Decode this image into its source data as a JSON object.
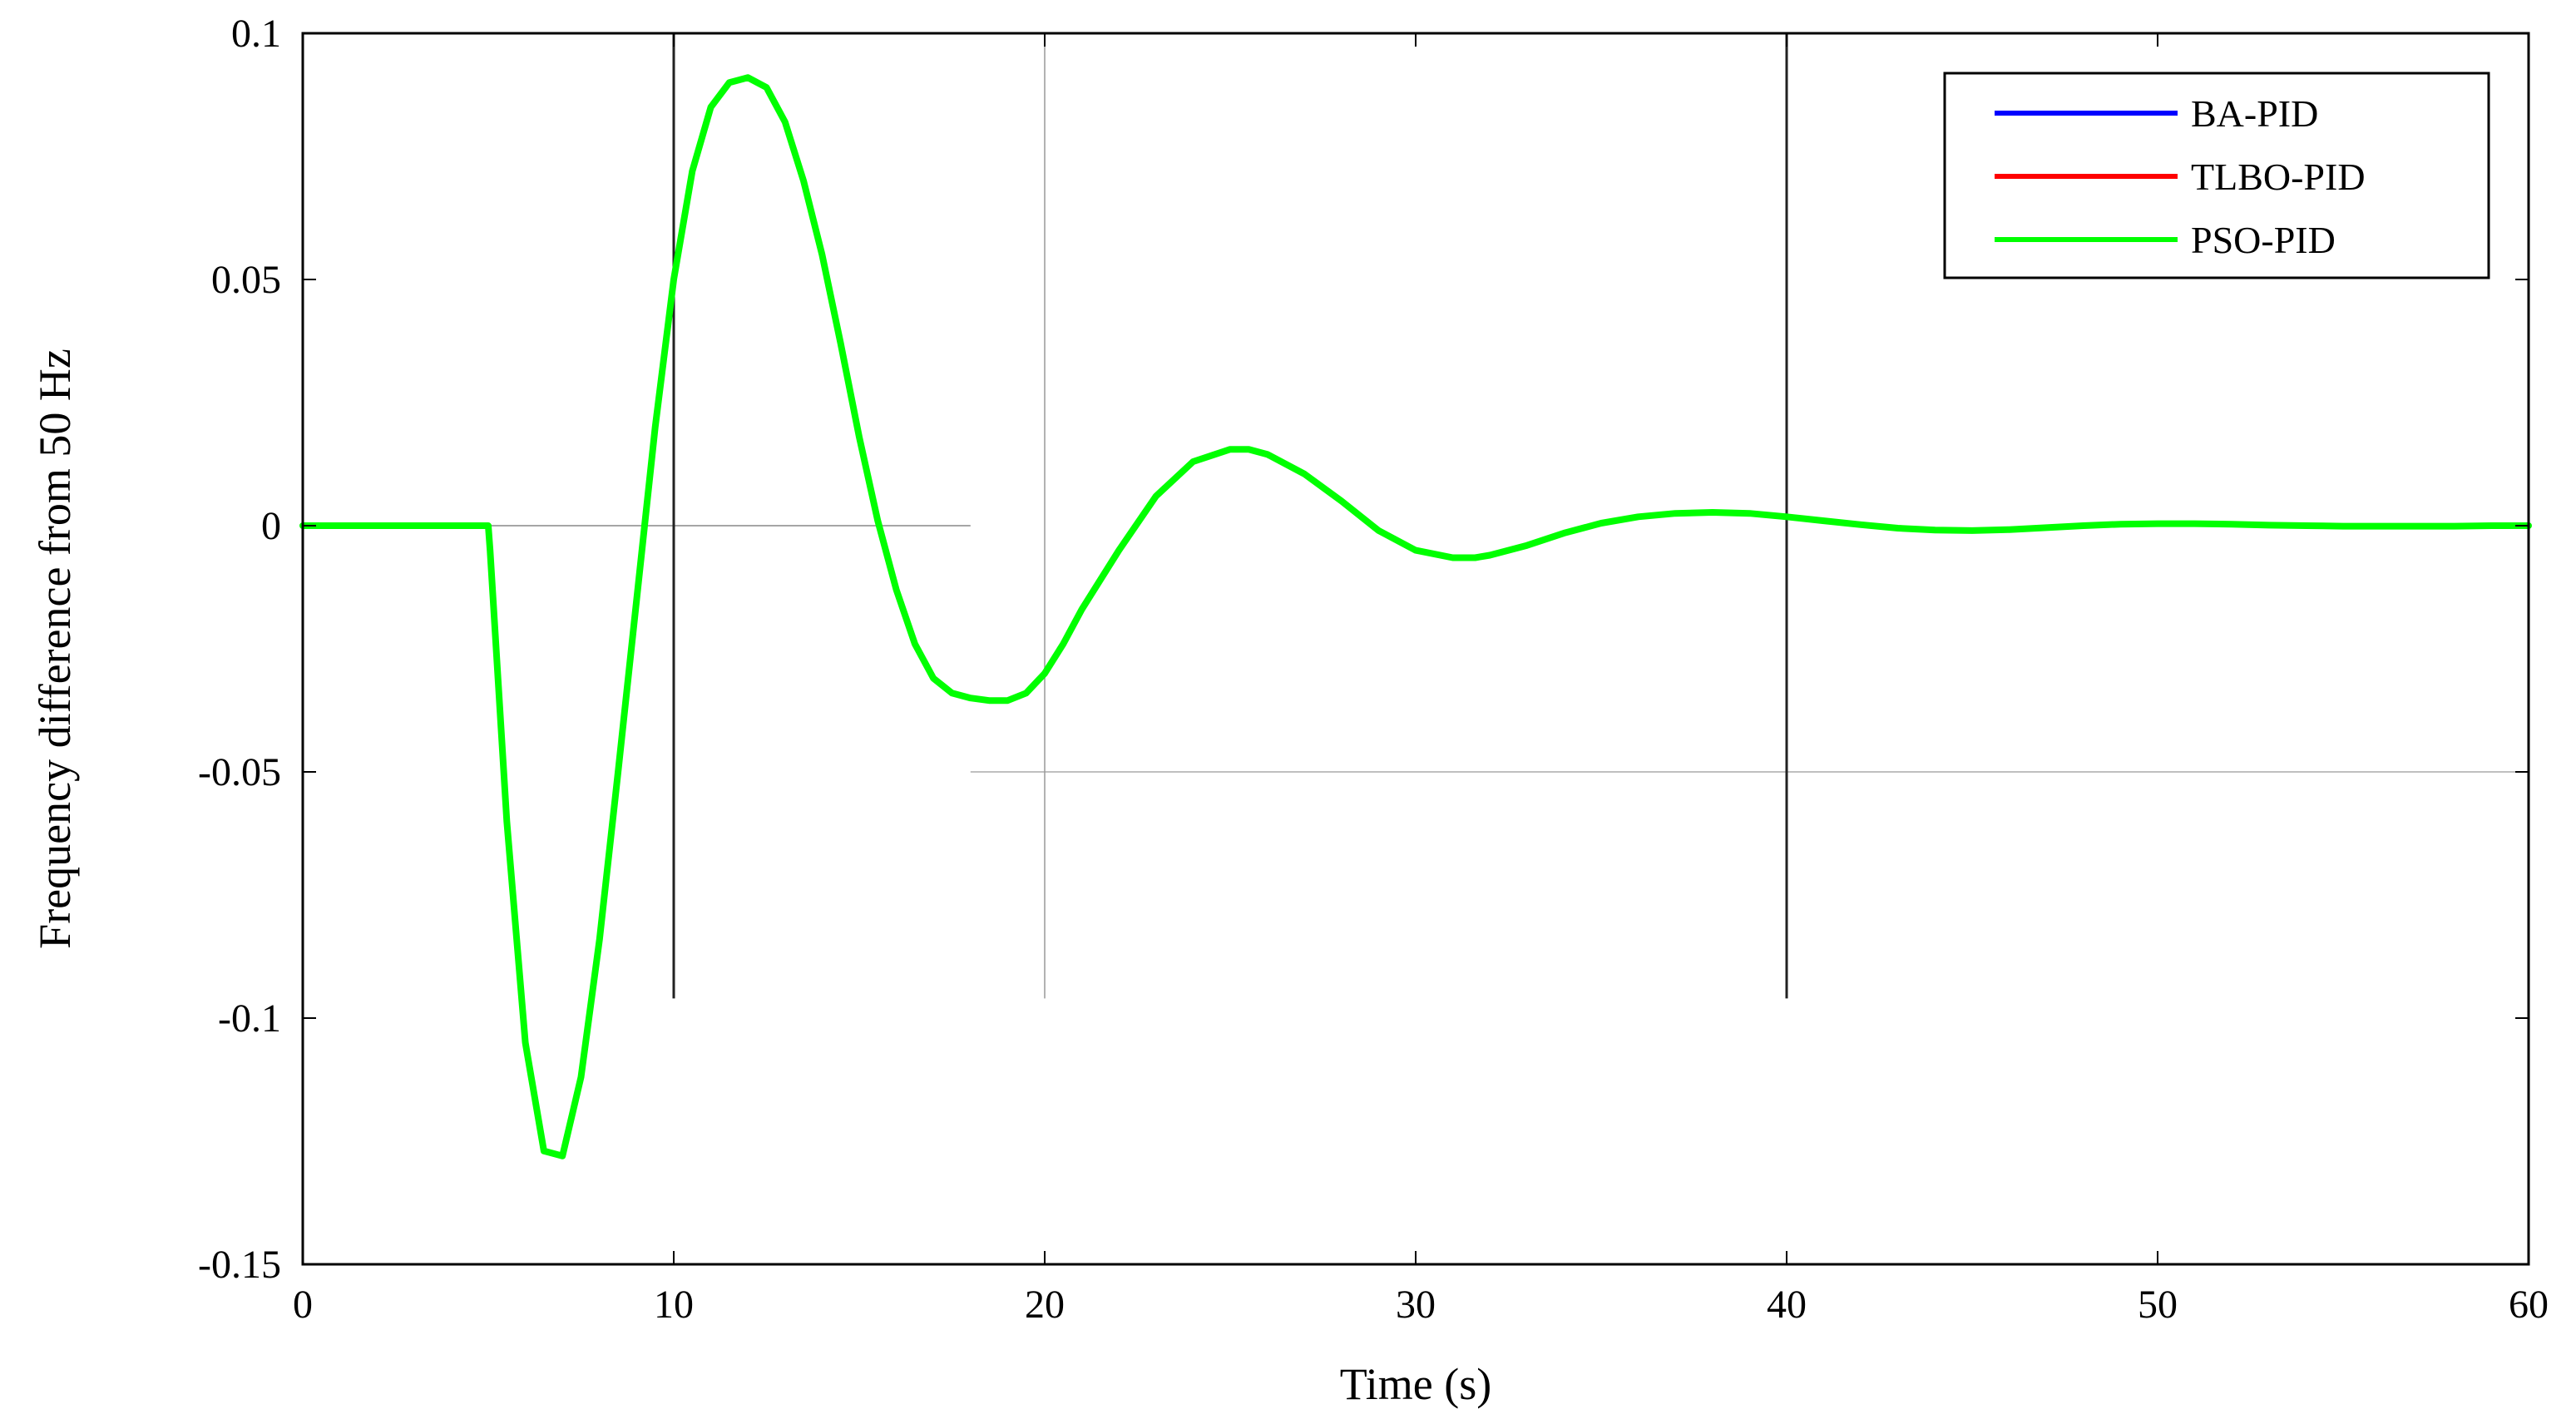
{
  "chart_data": {
    "type": "line",
    "title": "",
    "xlabel": "Time (s)",
    "ylabel": "Frequency difference from 50 Hz",
    "xlim": [
      0,
      60
    ],
    "ylim": [
      -0.15,
      0.1
    ],
    "x_ticks": [
      0,
      10,
      20,
      30,
      40,
      50,
      60
    ],
    "x_tick_labels": [
      "0",
      "10",
      "20",
      "30",
      "40",
      "50",
      "60"
    ],
    "y_ticks": [
      -0.15,
      -0.1,
      -0.05,
      0,
      0.05,
      0.1
    ],
    "y_tick_labels": [
      "-0.15",
      "-0.1",
      "-0.05",
      "0",
      "0.05",
      "0.1"
    ],
    "grid": false,
    "legend_position": "top-right",
    "series": [
      {
        "name": "BA-PID",
        "color": "#0000ff",
        "x": [
          0,
          5,
          5.05,
          5.5,
          6,
          6.5,
          7,
          7.5,
          8,
          8.5,
          9,
          9.5,
          10,
          10.5,
          11,
          11.5,
          12,
          12.5,
          13,
          13.5,
          14,
          14.5,
          15,
          15.5,
          16,
          16.5,
          17,
          17.5,
          18,
          18.5,
          19,
          19.5,
          20,
          20.5,
          21,
          22,
          23,
          24,
          25,
          25.5,
          26,
          27,
          28,
          29,
          30,
          31,
          31.6,
          32,
          33,
          34,
          35,
          36,
          37,
          38,
          39,
          40,
          41,
          42,
          43,
          44,
          45,
          46,
          47,
          48,
          49,
          50,
          51,
          52,
          53,
          54,
          55,
          56,
          57,
          58,
          59,
          60
        ],
        "y": [
          0,
          0,
          -0.005,
          -0.06,
          -0.105,
          -0.127,
          -0.128,
          -0.112,
          -0.084,
          -0.05,
          -0.015,
          0.02,
          0.05,
          0.072,
          0.085,
          0.09,
          0.091,
          0.089,
          0.082,
          0.07,
          0.055,
          0.037,
          0.018,
          0.001,
          -0.013,
          -0.024,
          -0.031,
          -0.034,
          -0.035,
          -0.0355,
          -0.0355,
          -0.034,
          -0.03,
          -0.024,
          -0.017,
          -0.005,
          0.006,
          0.013,
          0.0155,
          0.0155,
          0.0145,
          0.0105,
          0.005,
          -0.001,
          -0.005,
          -0.0065,
          -0.0065,
          -0.006,
          -0.004,
          -0.0015,
          0.0005,
          0.0018,
          0.0025,
          0.0027,
          0.0025,
          0.0018,
          0.001,
          0.0002,
          -0.0005,
          -0.0009,
          -0.001,
          -0.0008,
          -0.0004,
          0,
          0.0003,
          0.0004,
          0.0004,
          0.0003,
          0.0001,
          0,
          -0.0001,
          -0.0001,
          -0.0001,
          -0.0001,
          0,
          0
        ]
      },
      {
        "name": "TLBO-PID",
        "color": "#ff0000",
        "x": [
          0,
          5,
          5.05,
          5.5,
          6,
          6.5,
          7,
          7.5,
          8,
          8.5,
          9,
          9.5,
          10,
          10.5,
          11,
          11.5,
          12,
          12.5,
          13,
          13.5,
          14,
          14.5,
          15,
          15.5,
          16,
          16.5,
          17,
          17.5,
          18,
          18.5,
          19,
          19.5,
          20,
          20.5,
          21,
          22,
          23,
          24,
          25,
          25.5,
          26,
          27,
          28,
          29,
          30,
          31,
          31.6,
          32,
          33,
          34,
          35,
          36,
          37,
          38,
          39,
          40,
          41,
          42,
          43,
          44,
          45,
          46,
          47,
          48,
          49,
          50,
          51,
          52,
          53,
          54,
          55,
          56,
          57,
          58,
          59,
          60
        ],
        "y": [
          0,
          0,
          -0.005,
          -0.06,
          -0.105,
          -0.127,
          -0.128,
          -0.112,
          -0.084,
          -0.05,
          -0.015,
          0.02,
          0.05,
          0.072,
          0.085,
          0.09,
          0.091,
          0.089,
          0.082,
          0.07,
          0.055,
          0.037,
          0.018,
          0.001,
          -0.013,
          -0.024,
          -0.031,
          -0.034,
          -0.035,
          -0.0355,
          -0.0355,
          -0.034,
          -0.03,
          -0.024,
          -0.017,
          -0.005,
          0.006,
          0.013,
          0.0155,
          0.0155,
          0.0145,
          0.0105,
          0.005,
          -0.001,
          -0.005,
          -0.0065,
          -0.0065,
          -0.006,
          -0.004,
          -0.0015,
          0.0005,
          0.0018,
          0.0025,
          0.0027,
          0.0025,
          0.0018,
          0.001,
          0.0002,
          -0.0005,
          -0.0009,
          -0.001,
          -0.0008,
          -0.0004,
          0,
          0.0003,
          0.0004,
          0.0004,
          0.0003,
          0.0001,
          0,
          -0.0001,
          -0.0001,
          -0.0001,
          -0.0001,
          0,
          0
        ]
      },
      {
        "name": "PSO-PID",
        "color": "#00ff00",
        "x": [
          0,
          5,
          5.05,
          5.5,
          6,
          6.5,
          7,
          7.5,
          8,
          8.5,
          9,
          9.5,
          10,
          10.5,
          11,
          11.5,
          12,
          12.5,
          13,
          13.5,
          14,
          14.5,
          15,
          15.5,
          16,
          16.5,
          17,
          17.5,
          18,
          18.5,
          19,
          19.5,
          20,
          20.5,
          21,
          22,
          23,
          24,
          25,
          25.5,
          26,
          27,
          28,
          29,
          30,
          31,
          31.6,
          32,
          33,
          34,
          35,
          36,
          37,
          38,
          39,
          40,
          41,
          42,
          43,
          44,
          45,
          46,
          47,
          48,
          49,
          50,
          51,
          52,
          53,
          54,
          55,
          56,
          57,
          58,
          59,
          60
        ],
        "y": [
          0,
          0,
          -0.005,
          -0.06,
          -0.105,
          -0.127,
          -0.128,
          -0.112,
          -0.084,
          -0.05,
          -0.015,
          0.02,
          0.05,
          0.072,
          0.085,
          0.09,
          0.091,
          0.089,
          0.082,
          0.07,
          0.055,
          0.037,
          0.018,
          0.001,
          -0.013,
          -0.024,
          -0.031,
          -0.034,
          -0.035,
          -0.0355,
          -0.0355,
          -0.034,
          -0.03,
          -0.024,
          -0.017,
          -0.005,
          0.006,
          0.013,
          0.0155,
          0.0155,
          0.0145,
          0.0105,
          0.005,
          -0.001,
          -0.005,
          -0.0065,
          -0.0065,
          -0.006,
          -0.004,
          -0.0015,
          0.0005,
          0.0018,
          0.0025,
          0.0027,
          0.0025,
          0.0018,
          0.001,
          0.0002,
          -0.0005,
          -0.0009,
          -0.001,
          -0.0008,
          -0.0004,
          0,
          0.0003,
          0.0004,
          0.0004,
          0.0003,
          0.0001,
          0,
          -0.0001,
          -0.0001,
          -0.0001,
          -0.0001,
          0,
          0
        ]
      }
    ]
  }
}
